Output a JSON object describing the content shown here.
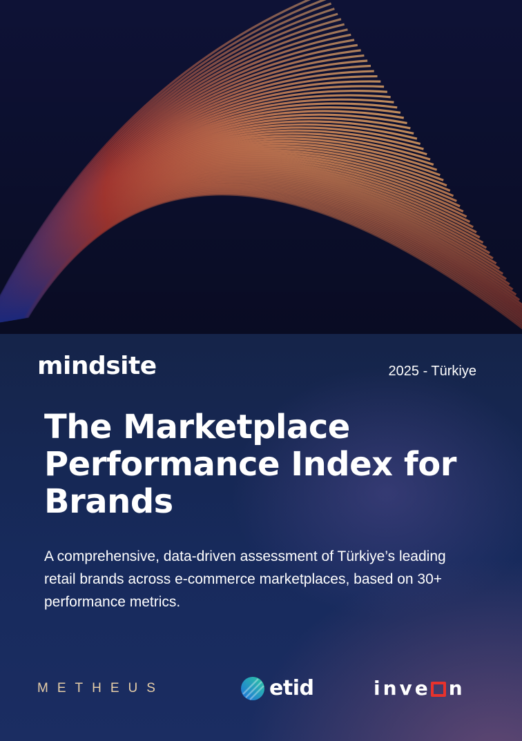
{
  "brand": {
    "logo_text": "mindsite"
  },
  "edition": "2025 - Türkiye",
  "title_lines": [
    "The Marketplace",
    "Performance Index for",
    "Brands"
  ],
  "subtitle_lines": [
    "A comprehensive, data-driven assessment of Türkiye’s leading",
    "retail brands across e-commerce marketplaces, based on 30+",
    "performance metrics."
  ],
  "partners": {
    "metheus": "METHEUS",
    "etid": "etid",
    "inveon": {
      "before": "inve",
      "after": "n"
    }
  },
  "colors": {
    "background": "#152449",
    "hero_left": "#3a4fd0",
    "hero_mid": "#c8423a",
    "hero_right": "#f0b070",
    "metheus": "#e8cfa8",
    "inveon_accent": "#e8322c",
    "etid_gradient": [
      "#1e88e5",
      "#26c6a6"
    ]
  },
  "icons": {
    "hero": "abstract-lines-artwork",
    "etid": "etid-logo-mark"
  }
}
